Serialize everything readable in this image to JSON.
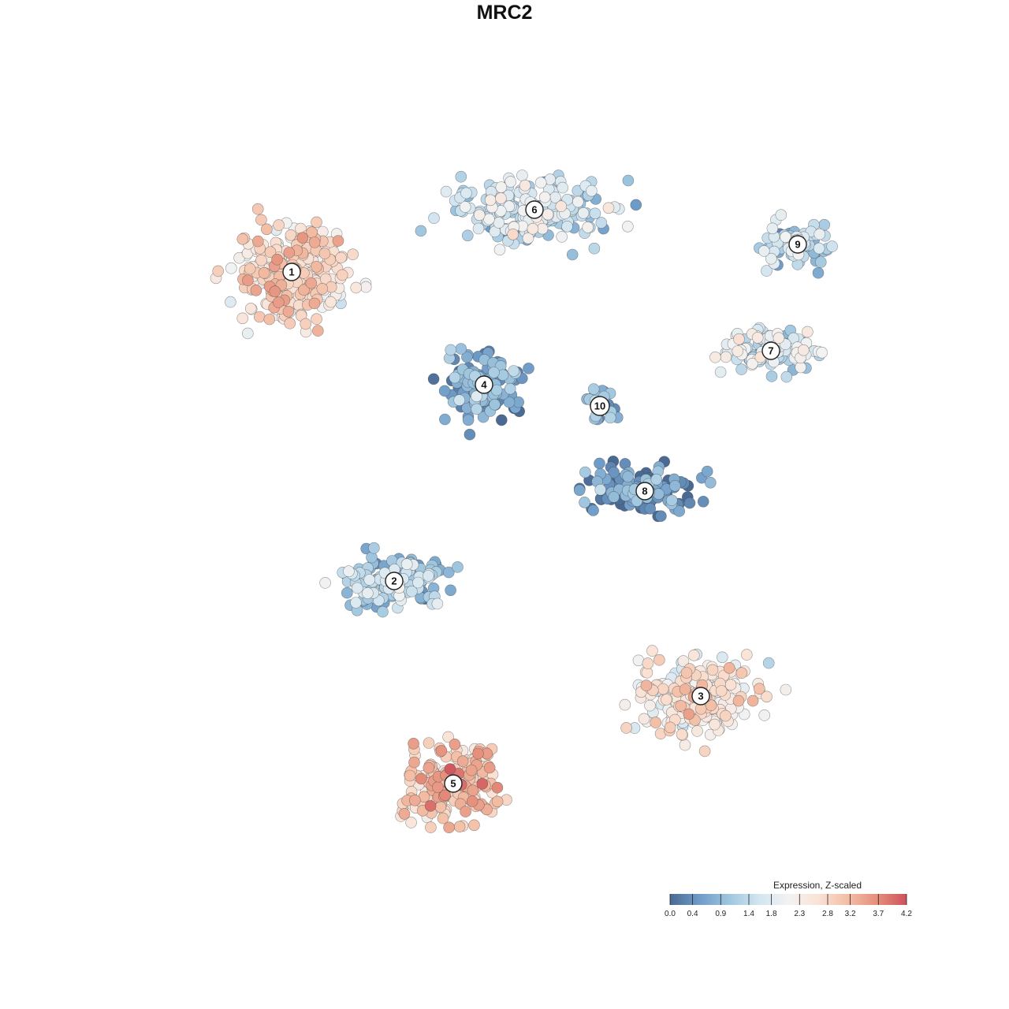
{
  "title": "MRC2",
  "chart_data": {
    "type": "scatter",
    "title": "MRC2",
    "xlabel": "",
    "ylabel": "",
    "grid": false,
    "legend": {
      "title": "Expression, Z-scaled",
      "placement": "bottom-right",
      "ticks": [
        0.0,
        0.4,
        0.9,
        1.4,
        1.8,
        2.3,
        2.8,
        3.2,
        3.7,
        4.2
      ],
      "tick_labels": [
        "0.0",
        "0.4",
        "0.9",
        "1.4",
        "1.8",
        "2.3",
        "2.8",
        "3.2",
        "3.7",
        "4.2"
      ],
      "colors": [
        "#4a6a93",
        "#6f9cc8",
        "#9fc6df",
        "#d2e5f0",
        "#f2f2f2",
        "#fae3d6",
        "#f3bea5",
        "#e58f7c",
        "#cd525c"
      ]
    },
    "clusters": [
      {
        "id": "1",
        "x": 0.0,
        "y": 0.0,
        "mean_expression": 2.6
      },
      {
        "id": "2",
        "x": 0.0,
        "y": 0.0,
        "mean_expression": 1.2
      },
      {
        "id": "3",
        "x": 0.0,
        "y": 0.0,
        "mean_expression": 2.4
      },
      {
        "id": "4",
        "x": 0.0,
        "y": 0.0,
        "mean_expression": 0.6
      },
      {
        "id": "5",
        "x": 0.0,
        "y": 0.0,
        "mean_expression": 3.0
      },
      {
        "id": "6",
        "x": 0.0,
        "y": 0.0,
        "mean_expression": 1.5
      },
      {
        "id": "7",
        "x": 0.0,
        "y": 0.0,
        "mean_expression": 1.6
      },
      {
        "id": "8",
        "x": 0.0,
        "y": 0.0,
        "mean_expression": 0.4
      },
      {
        "id": "9",
        "x": 0.0,
        "y": 0.0,
        "mean_expression": 1.2
      },
      {
        "id": "10",
        "x": 0.0,
        "y": 0.0,
        "mean_expression": 1.0
      }
    ]
  }
}
